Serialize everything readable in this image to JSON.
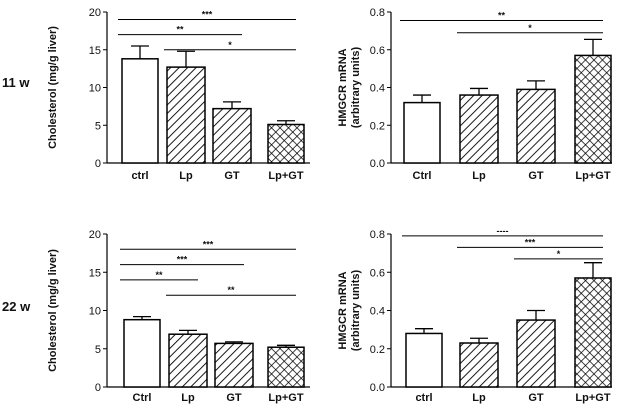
{
  "row_labels": [
    "11 w",
    "22 w"
  ],
  "chart_data": [
    {
      "type": "bar",
      "panel": "top-left",
      "ylabel": "Cholesterol (mg/g liver)",
      "categories": [
        "ctrl",
        "Lp",
        "GT",
        "Lp+GT"
      ],
      "values": [
        13.8,
        12.7,
        7.2,
        5.1
      ],
      "errors": [
        1.7,
        2.1,
        0.9,
        0.5
      ],
      "patterns": [
        "none",
        "diag",
        "diag",
        "cross"
      ],
      "ylim": [
        0,
        20
      ],
      "yticks": [
        "0",
        "5",
        "10",
        "15",
        "20"
      ],
      "significance": [
        {
          "from": 0,
          "to": 3,
          "label": "***",
          "y": 19.0
        },
        {
          "from": 0,
          "to": 2,
          "label": "**",
          "y": 17.0
        },
        {
          "from": 1,
          "to": 3,
          "label": "*",
          "y": 15.0
        }
      ]
    },
    {
      "type": "bar",
      "panel": "top-right",
      "ylabel": "HMGCR mRNA\n(arbitrary units)",
      "categories": [
        "Ctrl",
        "Lp",
        "GT",
        "Lp+GT"
      ],
      "values": [
        0.32,
        0.36,
        0.39,
        0.57
      ],
      "errors": [
        0.04,
        0.035,
        0.045,
        0.085
      ],
      "patterns": [
        "none",
        "diag",
        "diag",
        "cross"
      ],
      "ylim": [
        0,
        0.8
      ],
      "yticks": [
        "0.0",
        "0.2",
        "0.4",
        "0.6",
        "0.8"
      ],
      "significance": [
        {
          "from": 0,
          "to": 3,
          "label": "**",
          "y": 0.755
        },
        {
          "from": 1,
          "to": 3,
          "label": "*",
          "y": 0.69
        }
      ]
    },
    {
      "type": "bar",
      "panel": "bottom-left",
      "ylabel": "Cholesterol (mg/g liver)",
      "categories": [
        "Ctrl",
        "Lp",
        "GT",
        "Lp+GT"
      ],
      "values": [
        8.8,
        6.9,
        5.7,
        5.2
      ],
      "errors": [
        0.4,
        0.5,
        0.2,
        0.25
      ],
      "patterns": [
        "none",
        "diag",
        "diag",
        "cross"
      ],
      "ylim": [
        0,
        20
      ],
      "yticks": [
        "0",
        "5",
        "10",
        "15",
        "20"
      ],
      "significance": [
        {
          "from": 0,
          "to": 3,
          "label": "***",
          "y": 18.0
        },
        {
          "from": 0,
          "to": 2,
          "label": "***",
          "y": 16.0
        },
        {
          "from": 0,
          "to": 1,
          "label": "**",
          "y": 14.0
        },
        {
          "from": 1,
          "to": 3,
          "label": "**",
          "y": 12.0
        }
      ]
    },
    {
      "type": "bar",
      "panel": "bottom-right",
      "ylabel": "HMGCR mRNA\n(arbitrary units)",
      "categories": [
        "ctrl",
        "Lp",
        "GT",
        "Lp+GT"
      ],
      "values": [
        0.28,
        0.23,
        0.35,
        0.57
      ],
      "errors": [
        0.025,
        0.025,
        0.05,
        0.08
      ],
      "patterns": [
        "none",
        "diag",
        "diag",
        "cross"
      ],
      "ylim": [
        0,
        0.8
      ],
      "yticks": [
        "0.0",
        "0.2",
        "0.4",
        "0.6",
        "0.8"
      ],
      "significance": [
        {
          "from": 0,
          "to": 3,
          "label": "----",
          "y": 0.79
        },
        {
          "from": 1,
          "to": 3,
          "label": "***",
          "y": 0.73
        },
        {
          "from": 2,
          "to": 3,
          "label": "*",
          "y": 0.67
        }
      ]
    }
  ]
}
